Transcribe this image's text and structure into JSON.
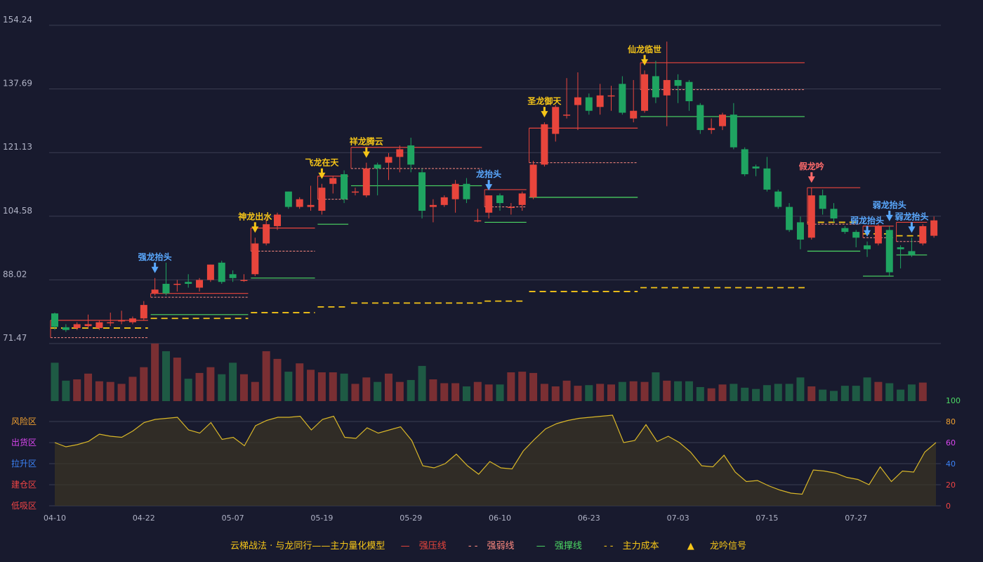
{
  "colors": {
    "background": "#181a2e",
    "up": "#e8453c",
    "down": "#1fa461",
    "volume_up": "#7a2f33",
    "volume_down": "#1e5a44",
    "pressure": "#e8453c",
    "weak": "#ff8a80",
    "support": "#4cd964",
    "cost": "#f5c518",
    "signal_gold": "#f5c518",
    "signal_blue": "#5aa9ff",
    "grid": "#3a3d52",
    "axis_text": "#b0b3c6",
    "oscillator": "#d9b728"
  },
  "chart_data": {
    "type": "candlestick",
    "price_axis": {
      "ticks": [
        154.24,
        137.69,
        121.13,
        104.58,
        88.02,
        71.47
      ],
      "range": [
        71.47,
        154.24
      ]
    },
    "x_ticks": [
      {
        "i": 0,
        "label": "04-10"
      },
      {
        "i": 8,
        "label": "04-22"
      },
      {
        "i": 16,
        "label": "05-07"
      },
      {
        "i": 24,
        "label": "05-19"
      },
      {
        "i": 32,
        "label": "05-29"
      },
      {
        "i": 40,
        "label": "06-10"
      },
      {
        "i": 48,
        "label": "06-23"
      },
      {
        "i": 56,
        "label": "07-03"
      },
      {
        "i": 64,
        "label": "07-15"
      },
      {
        "i": 72,
        "label": "07-27"
      }
    ],
    "candles": [
      [
        79.3,
        75.8,
        75,
        79.5
      ],
      [
        75.7,
        75,
        74.5,
        76.5
      ],
      [
        75.5,
        76.5,
        75,
        77
      ],
      [
        76,
        76.5,
        75.5,
        79
      ],
      [
        75.5,
        77,
        75,
        77.5
      ],
      [
        77,
        77,
        76,
        79.5
      ],
      [
        77.5,
        77.5,
        76.5,
        80
      ],
      [
        77,
        78,
        76.5,
        78.5
      ],
      [
        78,
        81.5,
        77.5,
        82.5
      ],
      [
        84.5,
        85.5,
        84,
        88.5
      ],
      [
        87,
        84.5,
        84,
        92.5
      ],
      [
        87,
        87,
        85,
        88
      ],
      [
        87.5,
        87,
        86,
        89.5
      ],
      [
        86,
        88,
        85,
        88.5
      ],
      [
        88,
        92,
        87.5,
        92
      ],
      [
        92.5,
        87.5,
        87,
        93
      ],
      [
        89.5,
        88.5,
        87.5,
        90.5
      ],
      [
        88,
        88,
        87.5,
        89.5
      ],
      [
        89.5,
        97.5,
        89,
        99
      ],
      [
        97.5,
        102.5,
        97,
        104
      ],
      [
        102,
        105,
        101,
        105.5
      ],
      [
        111,
        107,
        106.5,
        111
      ],
      [
        107,
        109,
        106.5,
        109.5
      ],
      [
        107,
        107.5,
        106,
        112.5
      ],
      [
        106,
        112,
        105,
        113
      ],
      [
        113,
        114.5,
        110.5,
        115
      ],
      [
        115.5,
        109,
        108,
        116.5
      ],
      [
        111,
        111,
        110,
        112
      ],
      [
        110,
        117,
        109.5,
        118.5
      ],
      [
        118,
        117,
        110,
        118.5
      ],
      [
        118.5,
        120,
        114,
        121
      ],
      [
        120,
        122,
        116,
        123
      ],
      [
        123,
        118,
        116,
        125
      ],
      [
        116,
        106,
        104,
        117
      ],
      [
        107,
        107.5,
        103,
        109
      ],
      [
        107.5,
        109.5,
        107,
        110
      ],
      [
        109,
        113,
        105.5,
        114
      ],
      [
        113,
        109,
        108,
        114.5
      ],
      [
        103.5,
        103.5,
        103,
        106.5
      ],
      [
        105.5,
        110,
        104,
        110
      ],
      [
        110,
        108,
        106,
        110.5
      ],
      [
        107,
        107,
        105,
        108
      ],
      [
        107.5,
        110.5,
        106,
        111
      ],
      [
        109.5,
        118,
        109,
        119
      ],
      [
        118,
        128.5,
        117.5,
        129
      ],
      [
        126,
        133,
        124,
        133.5
      ],
      [
        131,
        131,
        130,
        140.5
      ],
      [
        133.5,
        135.5,
        127,
        142
      ],
      [
        135.5,
        132,
        131,
        136.5
      ],
      [
        133,
        136,
        131,
        139
      ],
      [
        136,
        136,
        132,
        138.5
      ],
      [
        139,
        131.5,
        131,
        141
      ],
      [
        130,
        132,
        129,
        140
      ],
      [
        132,
        141.5,
        131.5,
        142.5
      ],
      [
        141,
        135.5,
        134,
        145
      ],
      [
        136,
        140,
        128,
        150
      ],
      [
        140,
        138.5,
        134,
        141.5
      ],
      [
        139.5,
        134.5,
        132,
        140
      ],
      [
        133.5,
        127,
        126,
        134
      ],
      [
        127,
        127.5,
        126,
        130
      ],
      [
        128,
        131,
        127,
        131.5
      ],
      [
        131,
        122.5,
        122,
        134
      ],
      [
        122,
        115.5,
        115,
        122.5
      ],
      [
        117.5,
        117,
        115,
        118
      ],
      [
        117,
        111.5,
        111,
        120
      ],
      [
        111,
        107,
        106.5,
        111.5
      ],
      [
        107,
        101,
        100.5,
        108
      ],
      [
        103,
        98.5,
        96,
        104.5
      ],
      [
        99,
        110,
        98.5,
        112
      ],
      [
        110,
        106.5,
        105,
        111.5
      ],
      [
        106.5,
        104,
        103,
        108
      ],
      [
        101.5,
        100.5,
        100,
        102
      ],
      [
        100.5,
        99,
        96.5,
        101
      ],
      [
        97,
        96,
        94,
        98
      ],
      [
        97.5,
        102,
        97,
        102.5
      ],
      [
        101,
        90,
        89,
        102
      ],
      [
        96.5,
        96,
        91,
        97
      ],
      [
        95.5,
        94.5,
        94,
        99
      ],
      [
        97.5,
        102,
        97,
        102.5
      ],
      [
        99.5,
        103.5,
        99,
        104.5
      ]
    ],
    "volume": [
      60,
      32,
      34,
      43,
      31,
      30,
      27,
      38,
      53,
      90,
      78,
      68,
      35,
      44,
      53,
      42,
      60,
      42,
      30,
      78,
      66,
      46,
      59,
      49,
      45,
      45,
      43,
      27,
      37,
      30,
      43,
      30,
      33,
      55,
      34,
      28,
      28,
      23,
      30,
      26,
      26,
      45,
      46,
      44,
      27,
      23,
      32,
      24,
      25,
      27,
      26,
      30,
      31,
      30,
      45,
      32,
      31,
      31,
      22,
      20,
      26,
      27,
      21,
      19,
      25,
      27,
      27,
      37,
      23,
      18,
      16,
      24,
      24,
      37,
      30,
      28,
      18,
      26,
      29
    ],
    "lines": {
      "pressure": [
        [
          0,
          8,
          77.5
        ],
        [
          9,
          17,
          84.5
        ],
        [
          18,
          23,
          101.5
        ],
        [
          24,
          26,
          115
        ],
        [
          27,
          38,
          122.5
        ],
        [
          39,
          42,
          111.5
        ],
        [
          43,
          52,
          127.5
        ],
        [
          53,
          67,
          144.5
        ],
        [
          68,
          72,
          112
        ],
        [
          73,
          75,
          102
        ],
        [
          76,
          78,
          103
        ]
      ],
      "weak": [
        [
          0,
          8,
          73
        ],
        [
          9,
          17,
          83.5
        ],
        [
          18,
          23,
          95.5
        ],
        [
          24,
          26,
          109
        ],
        [
          27,
          38,
          117
        ],
        [
          39,
          42,
          107
        ],
        [
          43,
          52,
          118.5
        ],
        [
          53,
          67,
          137.5
        ],
        [
          68,
          72,
          102.5
        ],
        [
          73,
          75,
          99
        ],
        [
          76,
          78,
          98
        ]
      ],
      "support": [
        [
          9,
          17,
          79
        ],
        [
          18,
          23,
          88.5
        ],
        [
          24,
          26,
          102.5
        ],
        [
          27,
          38,
          112.5
        ],
        [
          39,
          42,
          103
        ],
        [
          43,
          52,
          109.5
        ],
        [
          53,
          67,
          130.5
        ],
        [
          68,
          72,
          95.5
        ],
        [
          73,
          75,
          89
        ],
        [
          76,
          78,
          94.5
        ]
      ],
      "cost": [
        [
          0,
          8,
          75.5
        ],
        [
          9,
          17,
          78
        ],
        [
          18,
          23,
          79.5
        ],
        [
          24,
          26,
          81
        ],
        [
          27,
          38,
          82
        ],
        [
          39,
          42,
          82.5
        ],
        [
          43,
          52,
          85
        ],
        [
          53,
          67,
          86
        ],
        [
          68,
          72,
          103
        ],
        [
          73,
          75,
          100
        ],
        [
          76,
          78,
          99.5
        ]
      ]
    },
    "signals": [
      {
        "i": 9,
        "label": "强龙抬头",
        "color": "blue"
      },
      {
        "i": 18,
        "label": "神龙出水",
        "color": "gold"
      },
      {
        "i": 24,
        "label": "飞龙在天",
        "color": "gold"
      },
      {
        "i": 28,
        "label": "祥龙腾云",
        "color": "gold"
      },
      {
        "i": 39,
        "label": "龙抬头",
        "color": "blue"
      },
      {
        "i": 44,
        "label": "圣龙御天",
        "color": "gold"
      },
      {
        "i": 53,
        "label": "仙龙临世",
        "color": "gold"
      },
      {
        "i": 68,
        "label": "假龙吟",
        "color": "red"
      },
      {
        "i": 73,
        "label": "弱龙抬头",
        "color": "blue"
      },
      {
        "i": 75,
        "label": "弱龙抬头",
        "color": "blue"
      },
      {
        "i": 77,
        "label": "弱龙抬头",
        "color": "blue"
      }
    ],
    "oscillator": {
      "range": [
        0,
        100
      ],
      "ticks": [
        0,
        20,
        40,
        60,
        80,
        100
      ],
      "zones": [
        {
          "label": "风险区",
          "color": "#f0a030"
        },
        {
          "label": "出货区",
          "color": "#d946ef"
        },
        {
          "label": "拉升区",
          "color": "#3b82f6"
        },
        {
          "label": "建仓区",
          "color": "#ef4444"
        },
        {
          "label": "低吸区",
          "color": "#ef4444"
        }
      ],
      "values": [
        60,
        56,
        58,
        61,
        68,
        66,
        65,
        71,
        79,
        82,
        83,
        84,
        72,
        69,
        79,
        63,
        65,
        57,
        76,
        81,
        84,
        84,
        85,
        72,
        82,
        85,
        65,
        64,
        74,
        69,
        72,
        75,
        62,
        38,
        36,
        40,
        49,
        38,
        30,
        42,
        36,
        35,
        52,
        63,
        73,
        78,
        81,
        83,
        84,
        85,
        86,
        60,
        62,
        77,
        61,
        66,
        60,
        51,
        38,
        37,
        48,
        32,
        23,
        24,
        19,
        15,
        12,
        11,
        34,
        33,
        31,
        27,
        25,
        20,
        37,
        23,
        33,
        32,
        51,
        60
      ]
    }
  },
  "legend": {
    "model": "云梯战法 · 与龙同行——主力量化模型",
    "pressure": "强压线",
    "weak": "强弱线",
    "support": "强撑线",
    "cost": "主力成本",
    "signal": "龙吟信号"
  }
}
